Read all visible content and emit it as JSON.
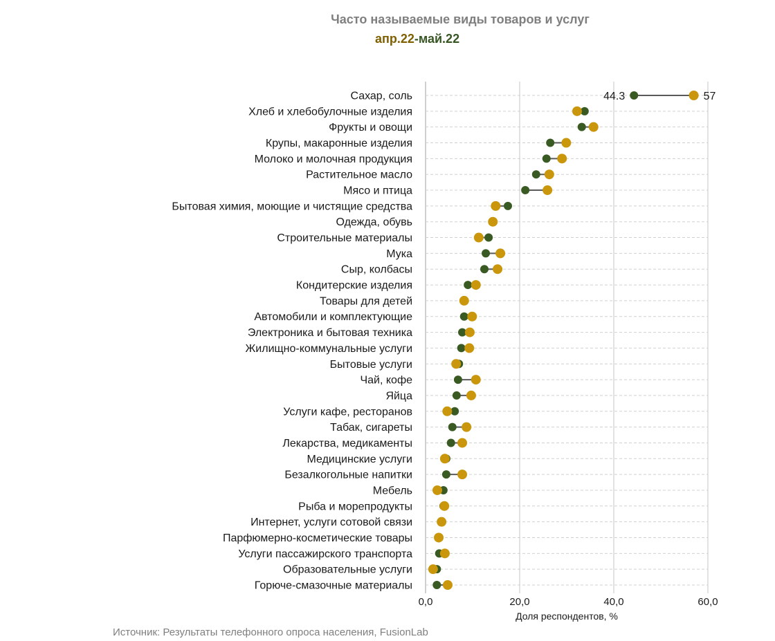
{
  "chart_data": {
    "type": "dumbbell",
    "title": "Часто называемые виды товаров и услуг",
    "subtitle_parts": [
      "апр.22",
      "-май.22"
    ],
    "xlabel": "Доля респондентов, %",
    "xlim": [
      0,
      60
    ],
    "xticks": [
      "0,0",
      "20,0",
      "40,0",
      "60,0"
    ],
    "grid": true,
    "categories": [
      "Сахар, соль",
      "Хлеб и хлебобулочные изделия",
      "Фрукты и овощи",
      "Крупы, макаронные изделия",
      "Молоко и молочная продукция",
      "Растительное масло",
      "Мясо и птица",
      "Бытовая химия, моющие и чистящие средства",
      "Одежда, обувь",
      "Строительные материалы",
      "Мука",
      "Сыр, колбасы",
      "Кондитерские изделия",
      "Товары для детей",
      "Автомобили и комплектующие",
      "Электроника и бытовая техника",
      "Жилищно-коммунальные услуги",
      "Бытовые услуги",
      "Чай, кофе",
      "Яйца",
      "Услуги кафе, ресторанов",
      "Табак, сигареты",
      "Лекарства, медикаменты",
      "Медицинские услуги",
      "Безалкогольные напитки",
      "Мебель",
      "Рыба и морепродукты",
      "Интернет, услуги сотовой связи",
      "Парфюмерно-косметические товары",
      "Услуги пассажирского транспорта",
      "Образовательные услуги",
      "Горюче-смазочные материалы"
    ],
    "series": [
      {
        "name": "апр.22",
        "color": "#c9960c",
        "values": [
          57,
          32.2,
          35.7,
          29.9,
          29.0,
          26.3,
          25.9,
          14.9,
          14.3,
          11.3,
          15.9,
          15.3,
          10.7,
          8.2,
          9.9,
          9.4,
          9.3,
          6.5,
          10.7,
          9.7,
          4.6,
          8.7,
          7.8,
          4.1,
          7.8,
          2.5,
          4.0,
          3.4,
          2.8,
          4.1,
          1.6,
          4.7
        ]
      },
      {
        "name": "май.22",
        "color": "#3a5a23",
        "values": [
          44.3,
          33.8,
          33.2,
          26.5,
          25.7,
          23.5,
          21.2,
          17.5,
          14.3,
          13.4,
          12.8,
          12.5,
          9.0,
          8.2,
          8.2,
          7.8,
          7.6,
          7.1,
          6.9,
          6.6,
          6.2,
          5.7,
          5.4,
          4.4,
          4.4,
          3.8,
          3.8,
          3.5,
          2.9,
          2.9,
          2.4,
          2.4
        ]
      }
    ],
    "data_labels": {
      "first_row_may": "44.3",
      "first_row_apr": "57"
    },
    "source": "Источник: Результаты телефонного опроса населения, FusionLab"
  },
  "colors": {
    "title": "#7f7f7f",
    "subtitle_apr": "#7f6000",
    "subtitle_may": "#375623",
    "connector": "#595959"
  }
}
